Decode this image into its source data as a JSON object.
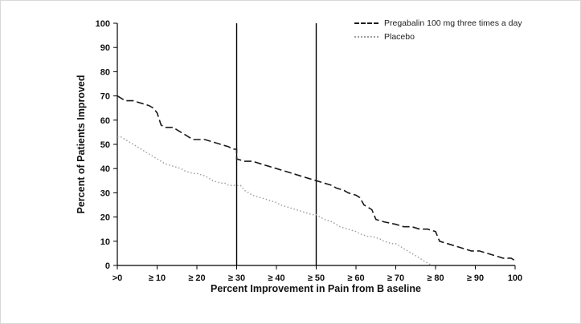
{
  "chart_data": {
    "type": "line",
    "title": "",
    "xlabel": "Percent Improvement in Pain from B aseline",
    "ylabel": "Percent of Patients Improved",
    "xlim": [
      0,
      100
    ],
    "ylim": [
      0,
      100
    ],
    "grid": false,
    "legend_position": "top-right",
    "y_ticks": [
      0,
      10,
      20,
      30,
      40,
      50,
      60,
      70,
      80,
      90,
      100
    ],
    "x_ticks": [
      {
        "v": 0,
        "label": ">0"
      },
      {
        "v": 10,
        "label": "≥ 10"
      },
      {
        "v": 20,
        "label": "≥ 20"
      },
      {
        "v": 30,
        "label": "≥ 30"
      },
      {
        "v": 40,
        "label": "≥ 40"
      },
      {
        "v": 50,
        "label": "≥ 50"
      },
      {
        "v": 60,
        "label": "≥ 60"
      },
      {
        "v": 70,
        "label": "≥ 70"
      },
      {
        "v": 80,
        "label": "≥ 80"
      },
      {
        "v": 90,
        "label": "≥ 90"
      },
      {
        "v": 100,
        "label": "100"
      }
    ],
    "reference_lines": [
      30,
      50
    ],
    "axis_color": "#000000",
    "series": [
      {
        "id": "pregabalin",
        "name": "Pregabalin 100 mg three times a day",
        "color": "#1a1a1a",
        "style": "dashed",
        "width": 1.6,
        "points": [
          [
            0,
            70
          ],
          [
            1,
            69
          ],
          [
            2,
            68
          ],
          [
            4,
            68
          ],
          [
            6,
            67
          ],
          [
            8,
            66
          ],
          [
            9,
            65
          ],
          [
            10,
            63
          ],
          [
            11,
            58
          ],
          [
            12,
            57
          ],
          [
            14,
            57
          ],
          [
            15,
            56
          ],
          [
            16,
            55
          ],
          [
            17,
            54
          ],
          [
            18,
            53
          ],
          [
            19,
            52
          ],
          [
            22,
            52
          ],
          [
            24,
            51
          ],
          [
            26,
            50
          ],
          [
            28,
            49
          ],
          [
            29,
            48
          ],
          [
            30,
            48
          ],
          [
            30,
            44
          ],
          [
            32,
            43
          ],
          [
            34,
            43
          ],
          [
            36,
            42
          ],
          [
            38,
            41
          ],
          [
            40,
            40
          ],
          [
            42,
            39
          ],
          [
            44,
            38
          ],
          [
            46,
            37
          ],
          [
            48,
            36
          ],
          [
            50,
            35
          ],
          [
            52,
            34
          ],
          [
            54,
            33
          ],
          [
            55,
            32
          ],
          [
            57,
            31
          ],
          [
            58,
            30
          ],
          [
            60,
            29
          ],
          [
            61,
            28
          ],
          [
            62,
            25
          ],
          [
            63,
            24
          ],
          [
            64,
            23
          ],
          [
            65,
            19
          ],
          [
            67,
            18
          ],
          [
            70,
            17
          ],
          [
            72,
            16
          ],
          [
            74,
            16
          ],
          [
            76,
            15
          ],
          [
            78,
            15
          ],
          [
            80,
            14
          ],
          [
            81,
            10
          ],
          [
            83,
            9
          ],
          [
            85,
            8
          ],
          [
            87,
            7
          ],
          [
            89,
            6
          ],
          [
            91,
            6
          ],
          [
            93,
            5
          ],
          [
            95,
            4
          ],
          [
            97,
            3
          ],
          [
            99,
            3
          ],
          [
            100,
            2
          ]
        ]
      },
      {
        "id": "placebo",
        "name": "Placebo",
        "color": "#a0a0a0",
        "style": "dotted",
        "width": 1.5,
        "points": [
          [
            0,
            53
          ],
          [
            1,
            53
          ],
          [
            2,
            52
          ],
          [
            3,
            51
          ],
          [
            4,
            50
          ],
          [
            5,
            49
          ],
          [
            6,
            48
          ],
          [
            7,
            47
          ],
          [
            8,
            46
          ],
          [
            9,
            45
          ],
          [
            10,
            44
          ],
          [
            11,
            43
          ],
          [
            12,
            42
          ],
          [
            14,
            41
          ],
          [
            16,
            40
          ],
          [
            17,
            39
          ],
          [
            19,
            38
          ],
          [
            20,
            38
          ],
          [
            22,
            37
          ],
          [
            23,
            36
          ],
          [
            24,
            35
          ],
          [
            26,
            34
          ],
          [
            27,
            34
          ],
          [
            28,
            33
          ],
          [
            31,
            33
          ],
          [
            32,
            31
          ],
          [
            33,
            30
          ],
          [
            34,
            29
          ],
          [
            36,
            28
          ],
          [
            38,
            27
          ],
          [
            40,
            26
          ],
          [
            41,
            25
          ],
          [
            43,
            24
          ],
          [
            45,
            23
          ],
          [
            47,
            22
          ],
          [
            49,
            21
          ],
          [
            50,
            21
          ],
          [
            51,
            20
          ],
          [
            52,
            19
          ],
          [
            54,
            18
          ],
          [
            55,
            17
          ],
          [
            56,
            16
          ],
          [
            58,
            15
          ],
          [
            60,
            14
          ],
          [
            61,
            13
          ],
          [
            63,
            12
          ],
          [
            64,
            12
          ],
          [
            66,
            11
          ],
          [
            67,
            10
          ],
          [
            69,
            9
          ],
          [
            70,
            9
          ],
          [
            71,
            8
          ],
          [
            72,
            7
          ],
          [
            73,
            6
          ],
          [
            74,
            5
          ],
          [
            75,
            4
          ],
          [
            76,
            3
          ],
          [
            77,
            2
          ],
          [
            78,
            1
          ],
          [
            79,
            0
          ]
        ]
      }
    ]
  }
}
